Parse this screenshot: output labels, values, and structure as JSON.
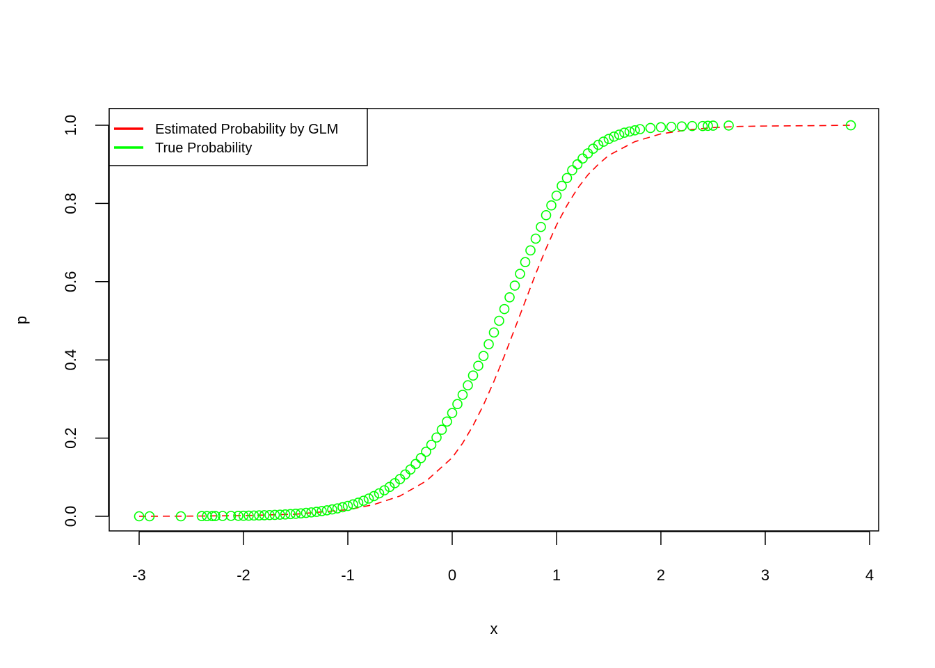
{
  "chart_data": {
    "type": "scatter",
    "title": "",
    "xlabel": "x",
    "ylabel": "p",
    "xlim": [
      -3.0,
      3.82
    ],
    "ylim": [
      0.0,
      1.0
    ],
    "xticks": [
      -3,
      -2,
      -1,
      0,
      1,
      2,
      3,
      4
    ],
    "xtick_labels": [
      "-3",
      "-2",
      "-1",
      "0",
      "1",
      "2",
      "3",
      "4"
    ],
    "yticks": [
      0.0,
      0.2,
      0.4,
      0.6,
      0.8,
      1.0
    ],
    "ytick_labels": [
      "0.0",
      "0.2",
      "0.4",
      "0.6",
      "0.8",
      "1.0"
    ],
    "grid": false,
    "legend_position": "top-left",
    "series": [
      {
        "name": "Estimated Probability by GLM",
        "color": "#ff0000",
        "style": "dashed-line",
        "x": [
          -3.0,
          -2.5,
          -2.0,
          -1.5,
          -1.0,
          -0.75,
          -0.5,
          -0.25,
          0.0,
          0.1,
          0.2,
          0.3,
          0.4,
          0.5,
          0.6,
          0.7,
          0.8,
          0.9,
          1.0,
          1.1,
          1.2,
          1.3,
          1.4,
          1.5,
          1.75,
          2.0,
          2.25,
          2.5,
          2.75,
          3.0,
          3.5,
          3.82
        ],
        "y": [
          0.0,
          0.0005,
          0.0018,
          0.0055,
          0.017,
          0.03,
          0.052,
          0.09,
          0.15,
          0.187,
          0.232,
          0.285,
          0.345,
          0.41,
          0.48,
          0.55,
          0.62,
          0.685,
          0.745,
          0.795,
          0.838,
          0.873,
          0.9,
          0.923,
          0.958,
          0.978,
          0.988,
          0.994,
          0.997,
          0.998,
          0.999,
          1.0
        ]
      },
      {
        "name": "True Probability",
        "color": "#00ff00",
        "style": "open-circles",
        "x": [
          -3.0,
          -2.9,
          -2.6,
          -2.4,
          -2.35,
          -2.3,
          -2.27,
          -2.2,
          -2.12,
          -2.05,
          -2.0,
          -1.95,
          -1.9,
          -1.85,
          -1.8,
          -1.75,
          -1.7,
          -1.65,
          -1.6,
          -1.55,
          -1.5,
          -1.45,
          -1.4,
          -1.35,
          -1.3,
          -1.25,
          -1.2,
          -1.15,
          -1.1,
          -1.05,
          -1.0,
          -0.95,
          -0.9,
          -0.85,
          -0.8,
          -0.75,
          -0.7,
          -0.65,
          -0.6,
          -0.55,
          -0.5,
          -0.45,
          -0.4,
          -0.35,
          -0.3,
          -0.25,
          -0.2,
          -0.15,
          -0.1,
          -0.05,
          0.0,
          0.05,
          0.1,
          0.15,
          0.2,
          0.25,
          0.3,
          0.35,
          0.4,
          0.45,
          0.5,
          0.55,
          0.6,
          0.65,
          0.7,
          0.75,
          0.8,
          0.85,
          0.9,
          0.95,
          1.0,
          1.05,
          1.1,
          1.15,
          1.2,
          1.25,
          1.3,
          1.35,
          1.4,
          1.45,
          1.5,
          1.55,
          1.6,
          1.65,
          1.7,
          1.75,
          1.8,
          1.9,
          2.0,
          2.1,
          2.2,
          2.3,
          2.4,
          2.45,
          2.5,
          2.65,
          3.82
        ],
        "y": [
          0.0,
          0.0,
          0.0,
          0.0005,
          0.0005,
          0.0006,
          0.0007,
          0.0009,
          0.0011,
          0.0013,
          0.0015,
          0.0017,
          0.002,
          0.0023,
          0.0027,
          0.0031,
          0.0036,
          0.0042,
          0.0048,
          0.0056,
          0.0065,
          0.0075,
          0.0087,
          0.01,
          0.0115,
          0.0133,
          0.0153,
          0.0176,
          0.0202,
          0.0232,
          0.0266,
          0.0305,
          0.0349,
          0.0398,
          0.0454,
          0.0517,
          0.0587,
          0.0665,
          0.0751,
          0.0847,
          0.0953,
          0.107,
          0.1198,
          0.1337,
          0.1489,
          0.1652,
          0.1828,
          0.2015,
          0.2214,
          0.2423,
          0.2642,
          0.287,
          0.3107,
          0.335,
          0.36,
          0.385,
          0.41,
          0.44,
          0.47,
          0.5,
          0.53,
          0.56,
          0.59,
          0.62,
          0.65,
          0.68,
          0.71,
          0.74,
          0.77,
          0.795,
          0.82,
          0.845,
          0.865,
          0.885,
          0.9,
          0.915,
          0.928,
          0.94,
          0.95,
          0.958,
          0.965,
          0.971,
          0.976,
          0.981,
          0.984,
          0.987,
          0.99,
          0.993,
          0.995,
          0.996,
          0.997,
          0.998,
          0.998,
          0.9985,
          0.999,
          0.9993,
          0.9999
        ]
      }
    ]
  }
}
